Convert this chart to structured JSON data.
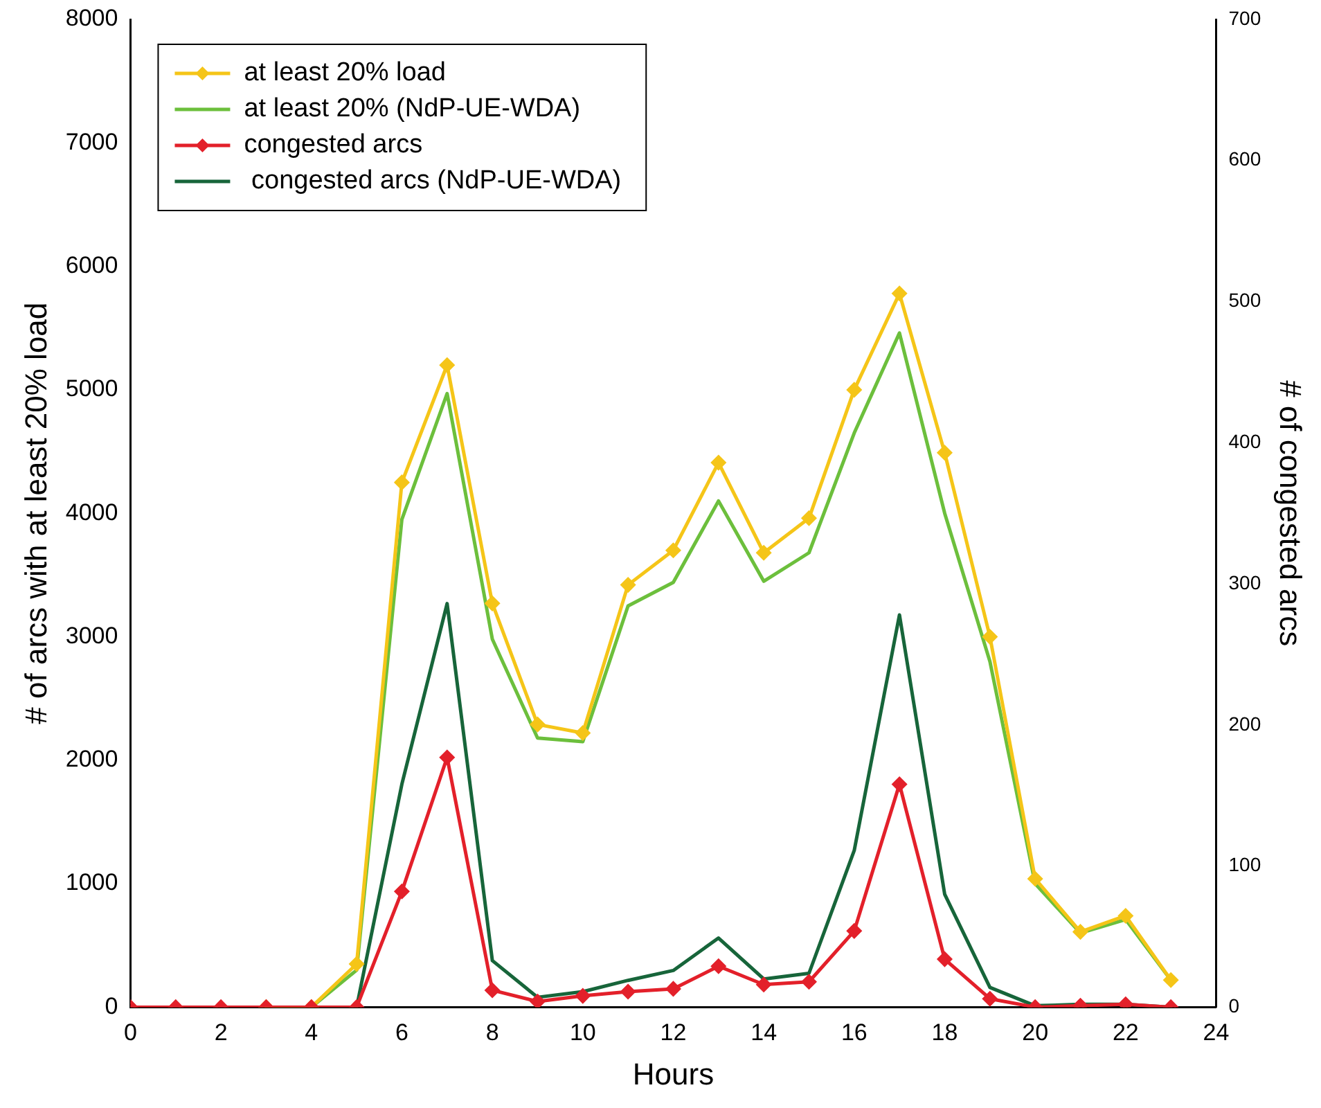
{
  "chart_data": {
    "type": "line",
    "xlabel": "Hours",
    "ylabel": "# of arcs with at least 20% load",
    "y2label": "# of congested arcs",
    "x": [
      0,
      1,
      2,
      3,
      4,
      5,
      6,
      7,
      8,
      9,
      10,
      11,
      12,
      13,
      14,
      15,
      16,
      17,
      18,
      19,
      20,
      21,
      22,
      23
    ],
    "series": [
      {
        "name": "at least 20% load",
        "color": "#f5c518",
        "marker": "diamond",
        "values": [
          null,
          null,
          null,
          0,
          0,
          350,
          4250,
          5200,
          3270,
          2290,
          2220,
          3420,
          3700,
          4410,
          3680,
          3960,
          5000,
          5780,
          4490,
          3000,
          1040,
          610,
          740,
          220
        ]
      },
      {
        "name": "at least 20% (NdP-UE-WDA)",
        "color": "#6cbf3c",
        "marker": "none",
        "values": [
          null,
          null,
          null,
          0,
          0,
          300,
          3950,
          4970,
          2980,
          2180,
          2150,
          3250,
          3440,
          4100,
          3450,
          3680,
          4650,
          5460,
          4000,
          2800,
          1000,
          600,
          710,
          220
        ]
      },
      {
        "name": "congested arcs",
        "color": "#e3202a",
        "marker": "diamond",
        "axis": "y2",
        "values": [
          0,
          0,
          0,
          0,
          0,
          0,
          82,
          177,
          12,
          4,
          8,
          11,
          13,
          29,
          16,
          18,
          54,
          158,
          34,
          6,
          0,
          1,
          2,
          0
        ]
      },
      {
        "name": " congested arcs (NdP-UE-WDA)",
        "color": "#17653a",
        "marker": "none",
        "axis": "y2",
        "values": [
          null,
          null,
          null,
          null,
          0,
          0,
          158,
          286,
          33,
          7,
          11,
          19,
          26,
          49,
          20,
          24,
          111,
          278,
          80,
          14,
          1,
          2,
          2,
          0
        ]
      }
    ],
    "xlim": [
      0,
      24
    ],
    "xticks": [
      0,
      2,
      4,
      6,
      8,
      10,
      12,
      14,
      16,
      18,
      20,
      22,
      24
    ],
    "ylim": [
      0,
      8000
    ],
    "yticks": [
      0,
      1000,
      2000,
      3000,
      4000,
      5000,
      6000,
      7000,
      8000
    ],
    "y2lim": [
      0,
      700
    ],
    "y2ticks": [
      0,
      100,
      200,
      300,
      400,
      500,
      600,
      700
    ],
    "grid": false,
    "legend": "top left",
    "line_style": "solid"
  }
}
